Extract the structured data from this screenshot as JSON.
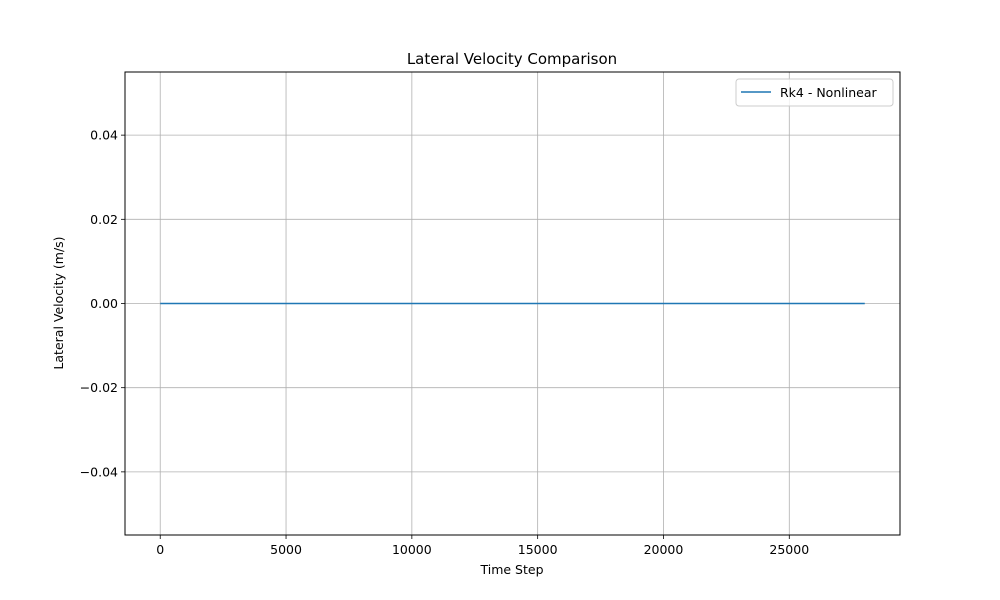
{
  "chart_data": {
    "type": "line",
    "title": "Lateral Velocity Comparison",
    "xlabel": "Time Step",
    "ylabel": "Lateral Velocity (m/s)",
    "xlim": [
      -1400,
      29400
    ],
    "ylim": [
      -0.055,
      0.055
    ],
    "xticks": [
      0,
      5000,
      10000,
      15000,
      20000,
      25000
    ],
    "xtick_labels": [
      "0",
      "5000",
      "10000",
      "15000",
      "20000",
      "25000"
    ],
    "yticks": [
      -0.04,
      -0.02,
      0.0,
      0.02,
      0.04
    ],
    "ytick_labels": [
      "−0.04",
      "−0.02",
      "0.00",
      "0.02",
      "0.04"
    ],
    "grid": true,
    "legend_position": "top-right",
    "series": [
      {
        "name": "Rk4 - Nonlinear",
        "color": "#1f77b4",
        "x": [
          0,
          28000
        ],
        "y": [
          0.0,
          0.0
        ]
      }
    ]
  }
}
